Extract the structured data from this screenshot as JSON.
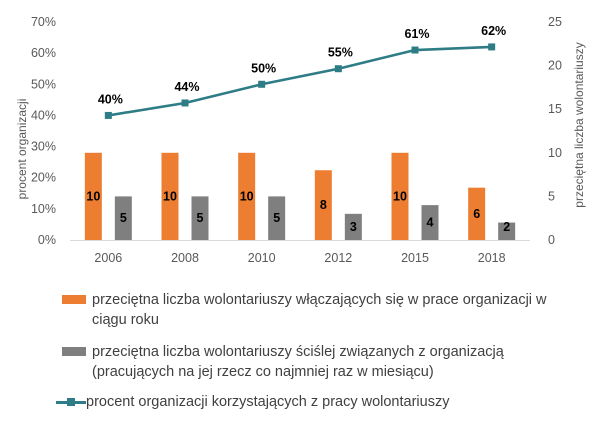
{
  "chart_data": {
    "type": "bar",
    "categories": [
      "2006",
      "2008",
      "2010",
      "2012",
      "2015",
      "2018"
    ],
    "series": [
      {
        "name": "przeciętna liczba wolontariuszy włączających się w prace organizacji w ciągu roku",
        "type": "bar",
        "axis": "right",
        "values": [
          10,
          10,
          10,
          8,
          10,
          6
        ],
        "data_labels": [
          "10",
          "10",
          "10",
          "8",
          "10",
          "6"
        ]
      },
      {
        "name": "przeciętna liczba wolontariuszy ściślej związanych z organizacją (pracujących na jej rzecz co najmniej raz w miesiącu)",
        "type": "bar",
        "axis": "right",
        "values": [
          5,
          5,
          5,
          3,
          4,
          2
        ],
        "data_labels": [
          "5",
          "5",
          "5",
          "3",
          "4",
          "2"
        ]
      },
      {
        "name": "procent organizacji korzystających z pracy wolontariuszy",
        "type": "line",
        "axis": "left",
        "values": [
          40,
          44,
          50,
          55,
          61,
          62
        ],
        "data_labels": [
          "40%",
          "44%",
          "50%",
          "55%",
          "61%",
          "62%"
        ]
      }
    ],
    "left_axis": {
      "label": "procent organizacji",
      "ylim": [
        0,
        70
      ],
      "ticks": [
        "0%",
        "10%",
        "20%",
        "30%",
        "40%",
        "50%",
        "60%",
        "70%"
      ]
    },
    "right_axis": {
      "label": "przeciętna liczba wolontariuszy",
      "ylim": [
        0,
        25
      ],
      "ticks": [
        "0",
        "5",
        "10",
        "15",
        "20",
        "25"
      ]
    },
    "legend_position": "bottom",
    "grid": false,
    "colors": {
      "bar1": "#ED7D31",
      "bar2": "#7F7F7F",
      "line": "#2E7D86"
    }
  }
}
